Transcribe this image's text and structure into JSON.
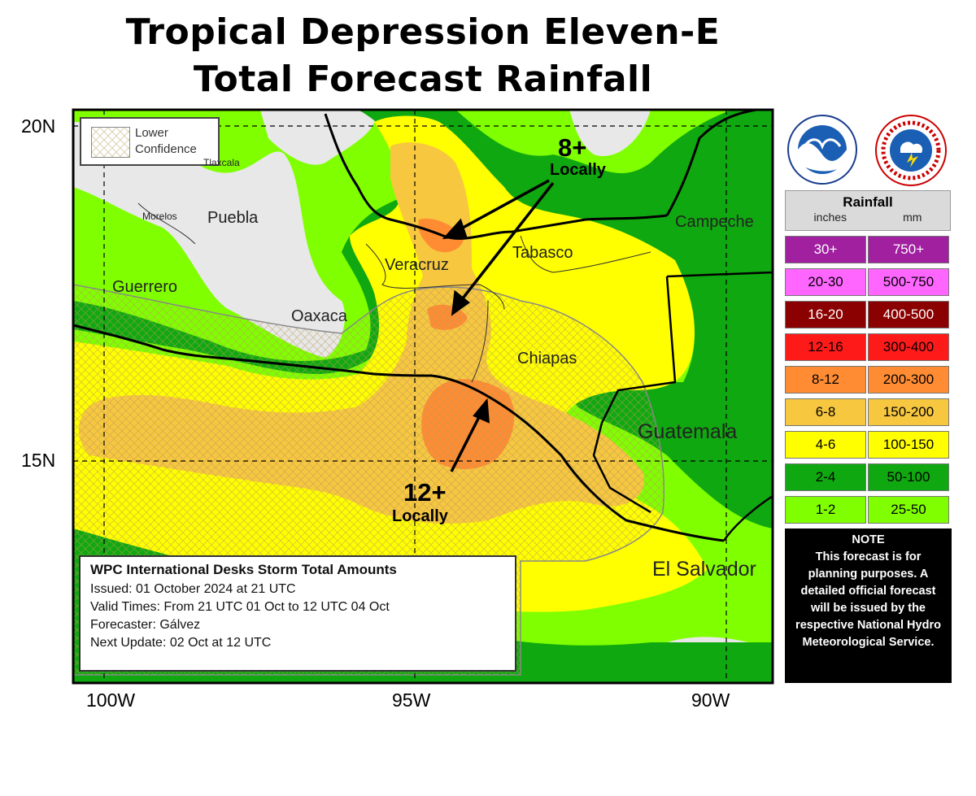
{
  "title": {
    "line1": "Tropical Depression Eleven-E",
    "line2": "Total Forecast Rainfall"
  },
  "axes": {
    "lat_labels": [
      "20N",
      "15N"
    ],
    "lon_labels": [
      "100W",
      "95W",
      "90W"
    ]
  },
  "lower_confidence": {
    "line1": "Lower",
    "line2": "Confidence"
  },
  "regions": {
    "tlaxcala": "Tlaxcala",
    "morelos": "Morelos",
    "puebla": "Puebla",
    "guerrero": "Guerrero",
    "oaxaca": "Oaxaca",
    "veracruz": "Veracruz",
    "tabasco": "Tabasco",
    "campeche": "Campeche",
    "chiapas": "Chiapas",
    "guatemala": "Guatemala",
    "el_salvador": "El Salvador"
  },
  "annotations": {
    "north_amount": "8+",
    "north_note": "Locally",
    "south_amount": "12+",
    "south_note": "Locally"
  },
  "info": {
    "header": "WPC International Desks Storm Total Amounts",
    "issued": "Issued:  01 October 2024 at 21 UTC",
    "valid": "Valid Times:  From 21 UTC 01 Oct  to  12 UTC 04 Oct",
    "forecaster": "Forecaster: Gálvez",
    "next_update": "Next Update: 02 Oct at 12 UTC"
  },
  "legend": {
    "title": "Rainfall",
    "col_inches": "inches",
    "col_mm": "mm",
    "rows": [
      {
        "inches": "30+",
        "mm": "750+",
        "color": "#a020a0",
        "text_color": "#ffffff"
      },
      {
        "inches": "20-30",
        "mm": "500-750",
        "color": "#ff66ff",
        "text_color": "#000000"
      },
      {
        "inches": "16-20",
        "mm": "400-500",
        "color": "#8b0000",
        "text_color": "#ffffff"
      },
      {
        "inches": "12-16",
        "mm": "300-400",
        "color": "#ff1a1a",
        "text_color": "#000000"
      },
      {
        "inches": "8-12",
        "mm": "200-300",
        "color": "#ff8c33",
        "text_color": "#000000"
      },
      {
        "inches": "6-8",
        "mm": "150-200",
        "color": "#f7c740",
        "text_color": "#000000"
      },
      {
        "inches": "4-6",
        "mm": "100-150",
        "color": "#ffff00",
        "text_color": "#000000"
      },
      {
        "inches": "2-4",
        "mm": "50-100",
        "color": "#10a810",
        "text_color": "#000000"
      },
      {
        "inches": "1-2",
        "mm": "25-50",
        "color": "#80ff00",
        "text_color": "#000000"
      }
    ]
  },
  "note": {
    "header": "NOTE",
    "body": "This forecast is for planning purposes. A detailed official forecast will be issued by the respective National Hydro Meteorological Service."
  },
  "logos": {
    "noaa": "noaa-logo",
    "nws": "nws-logo"
  }
}
